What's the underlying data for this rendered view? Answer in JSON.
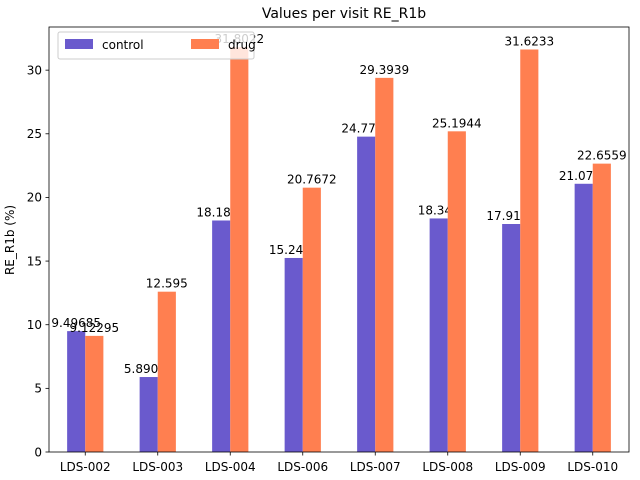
{
  "chart_data": {
    "type": "bar",
    "title": "Values per visit RE_R1b",
    "xlabel": "",
    "ylabel": "RE_R1b (%)",
    "categories": [
      "LDS-002",
      "LDS-003",
      "LDS-004",
      "LDS-006",
      "LDS-007",
      "LDS-008",
      "LDS-009",
      "LDS-010"
    ],
    "series": [
      {
        "name": "control",
        "color": "#6a5acd",
        "values": [
          9.49685,
          5.89002,
          18.1886,
          15.2436,
          24.7768,
          18.349,
          17.9128,
          21.0724
        ],
        "labels": [
          "9.49685",
          "5.89002",
          "18.1886",
          "15.2436",
          "24.7768",
          "18.349",
          "17.9128",
          "21.0724"
        ]
      },
      {
        "name": "drug",
        "color": "#ff7f50",
        "values": [
          9.12295,
          12.595,
          31.8022,
          20.7672,
          29.3939,
          25.1944,
          31.6233,
          22.6559
        ],
        "labels": [
          "9.12295",
          "12.595",
          "31.8022",
          "20.7672",
          "29.3939",
          "25.1944",
          "31.6233",
          "22.6559"
        ]
      }
    ],
    "ylim": [
      0,
      33.39
    ],
    "yticks": [
      0,
      5,
      10,
      15,
      20,
      25,
      30
    ],
    "ytick_labels": [
      "0",
      "5",
      "10",
      "15",
      "20",
      "25",
      "30"
    ],
    "grid": false,
    "legend": "top-left"
  }
}
